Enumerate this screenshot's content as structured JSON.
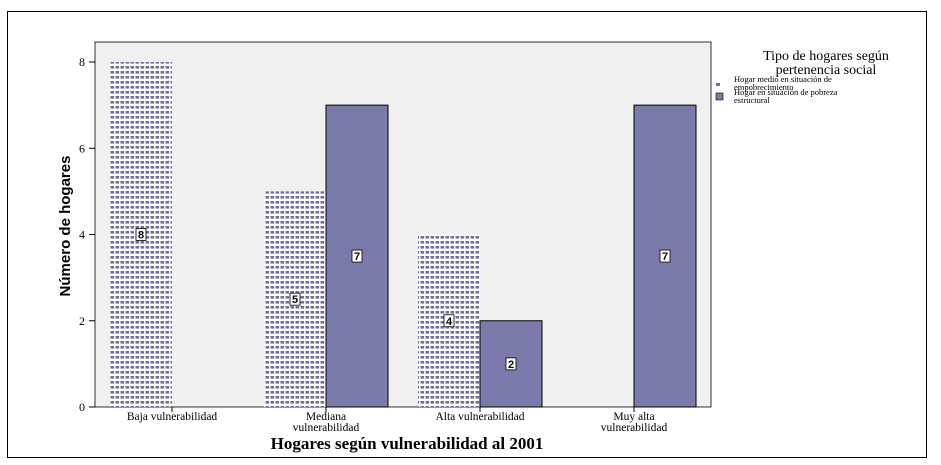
{
  "chart_data": {
    "type": "bar",
    "xlabel": "Hogares según vulnerabilidad al 2001",
    "ylabel": "Número de hogares",
    "ylim": [
      0,
      8
    ],
    "yticks": [
      0,
      2,
      4,
      6,
      8
    ],
    "grid": false,
    "legend_position": "right",
    "legend_title": [
      "Tipo de hogares según",
      "pertenencia social"
    ],
    "categories": [
      [
        "Baja vulnerabilidad"
      ],
      [
        "Mediana",
        "vulnerabilidad"
      ],
      [
        "Alta vulnerabilidad"
      ],
      [
        "Muy alta",
        "vulnerabilidad"
      ]
    ],
    "series": [
      {
        "name": [
          "Hogar medio en situación de",
          "empobrecimiento"
        ],
        "pattern": "dotted",
        "color": "#6f6f9f",
        "values": [
          8,
          5,
          4,
          null
        ]
      },
      {
        "name": [
          "Hogar en situación de pobreza",
          "estructural"
        ],
        "pattern": "solid",
        "color": "#7b7bab",
        "values": [
          null,
          7,
          2,
          7
        ]
      }
    ],
    "plot_background": "#f0f0f0"
  }
}
